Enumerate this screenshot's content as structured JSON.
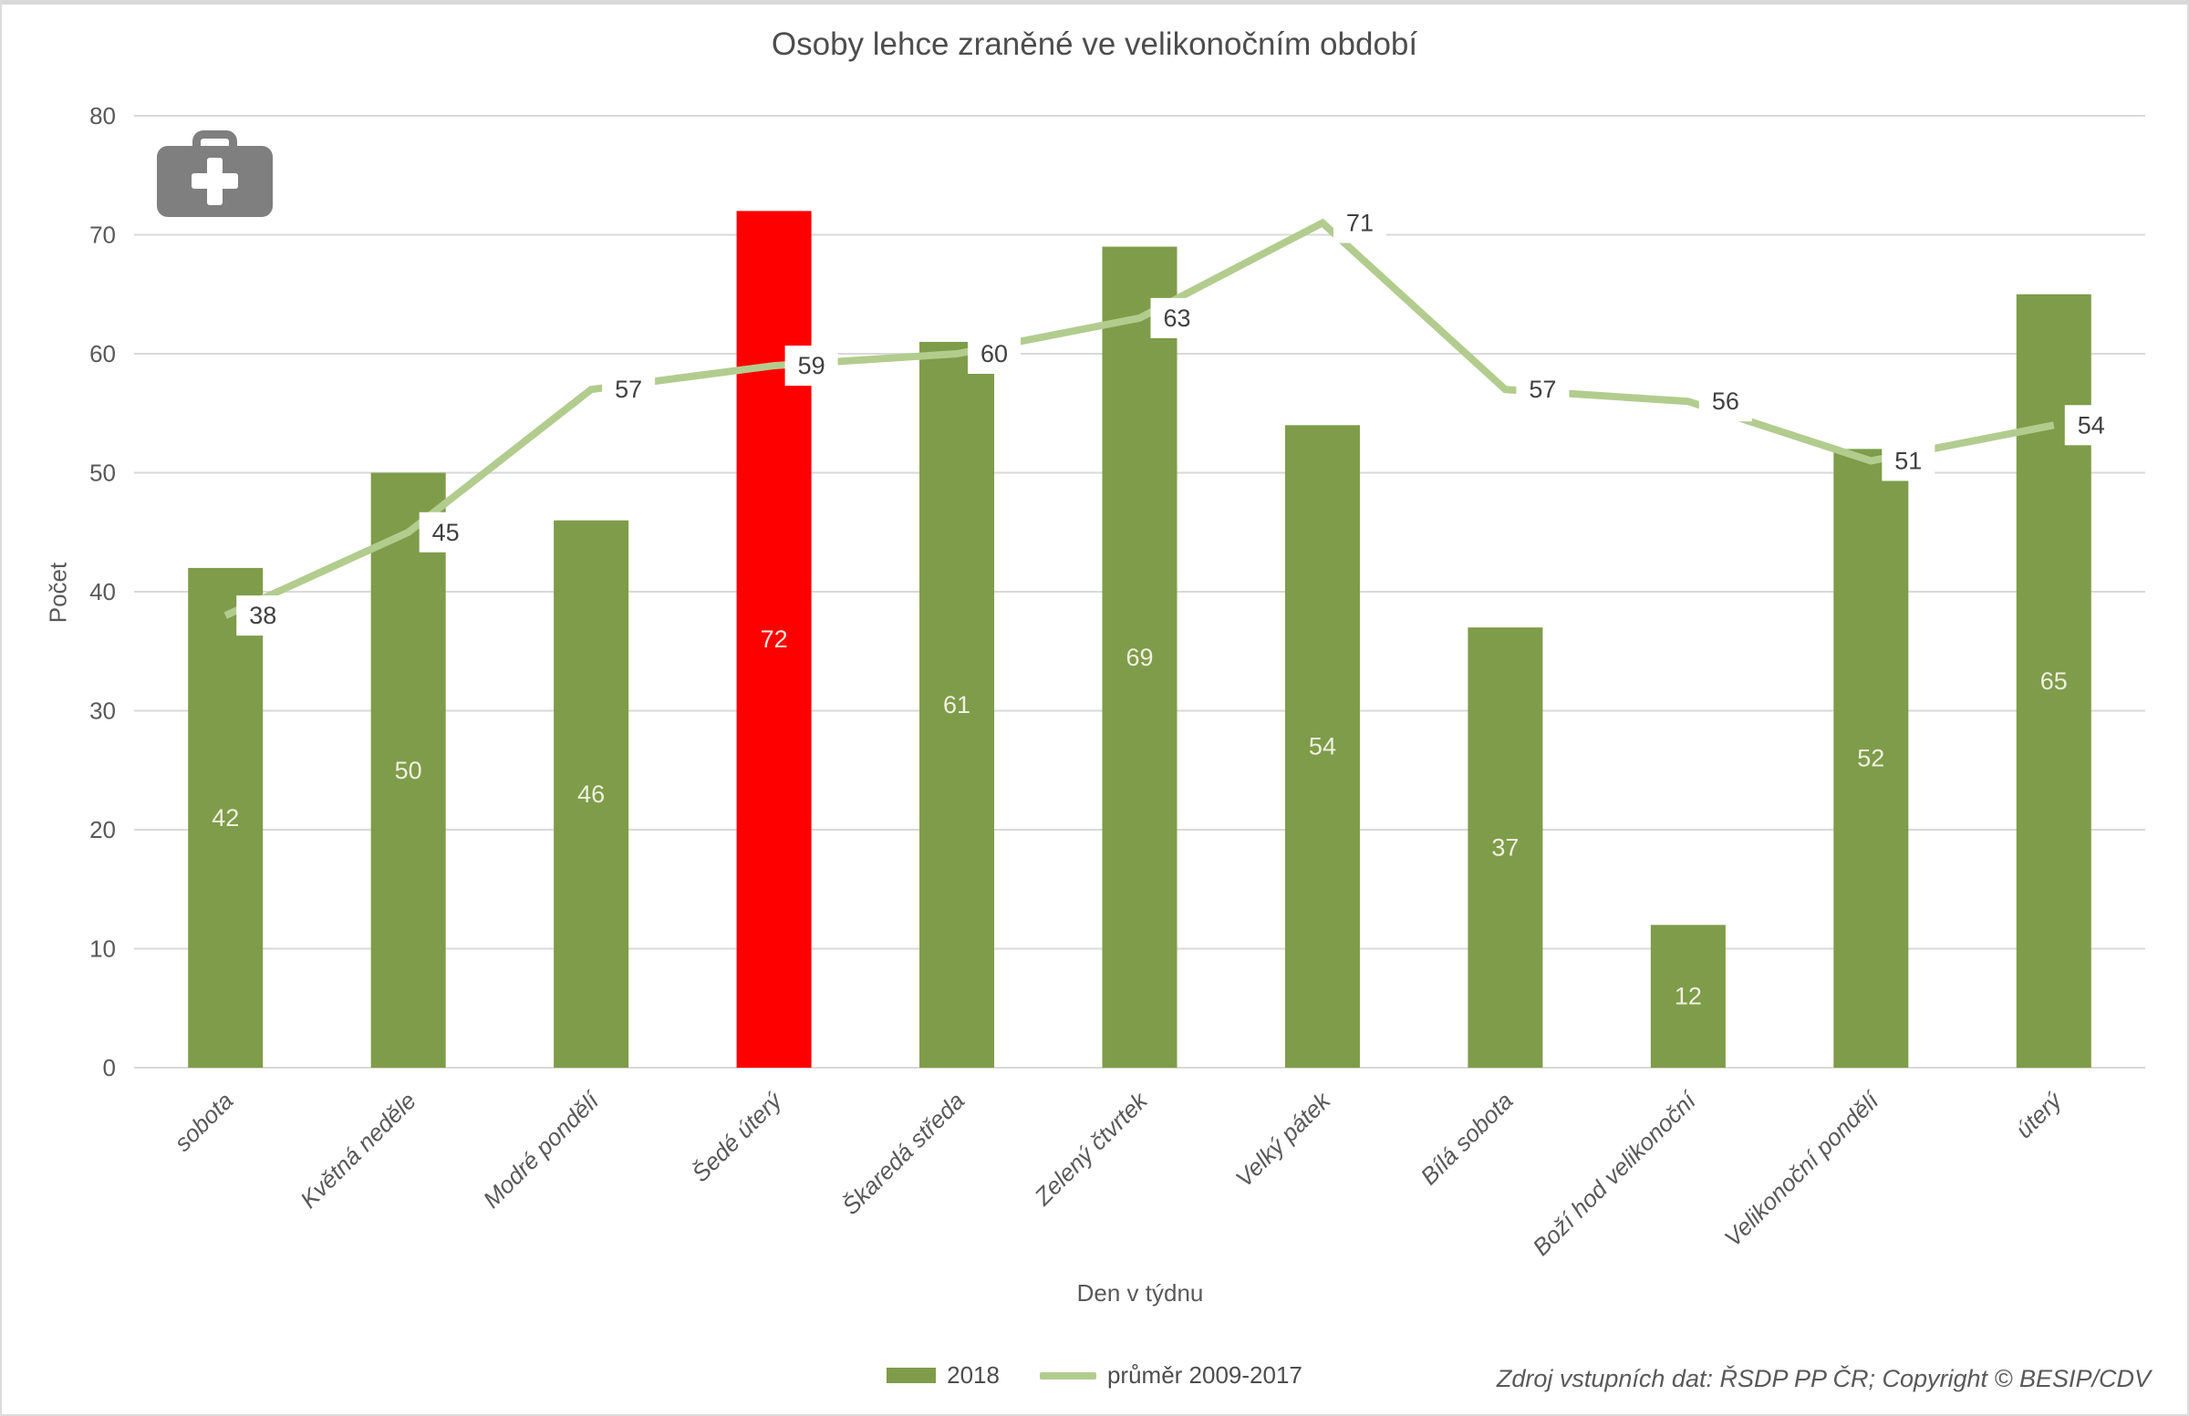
{
  "window": {
    "background": "#ffffff",
    "border_color": "#dcdcdc"
  },
  "chart_data": {
    "type": "bar",
    "title": "Osoby lehce zraněné ve velikonočním období",
    "xlabel": "Den v týdnu",
    "ylabel": "Počet",
    "ylim": [
      0,
      80
    ],
    "ytick_step": 10,
    "grid": true,
    "grid_color": "#d9d9d9",
    "text_color": "#595959",
    "title_color": "#4d4d4d",
    "legend_position": "bottom",
    "categories": [
      "sobota",
      "Květná neděle",
      "Modré pondělí",
      "Šedé úterý",
      "Škaredá středa",
      "Zelený čtvrtek",
      "Velký pátek",
      "Bílá sobota",
      "Boží hod velikonoční",
      "Velikonoční pondělí",
      "úterý"
    ],
    "series": [
      {
        "name": "2018",
        "type": "bar",
        "values": [
          42,
          50,
          46,
          72,
          61,
          69,
          54,
          37,
          12,
          52,
          65
        ],
        "color": "#7e9c49",
        "highlight_index": 3,
        "highlight_color": "#ff0000",
        "label_color": "#f1f0e2"
      },
      {
        "name": "průměr 2009-2017",
        "type": "line",
        "values": [
          38,
          45,
          57,
          59,
          60,
          63,
          71,
          57,
          56,
          51,
          54
        ],
        "color": "#b2cc8e",
        "label_color": "#404040",
        "label_bg": "#ffffff"
      }
    ]
  },
  "icons": {
    "first_aid_kit": "first-aid-kit-icon"
  },
  "footer": {
    "source_text": "Zdroj vstupních dat: ŘSDP PP ČR; Copyright © BESIP/CDV"
  }
}
